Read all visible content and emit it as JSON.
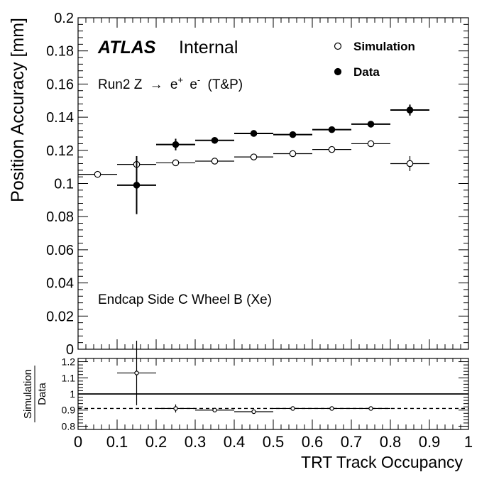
{
  "chart_data": [
    {
      "type": "scatter",
      "panel": "main",
      "ylabel": "Position Accuracy [mm]",
      "ylim": [
        0,
        0.2
      ],
      "xlim": [
        0,
        1
      ],
      "ytick_labels": [
        "0",
        "0.02",
        "0.04",
        "0.06",
        "0.08",
        "0.1",
        "0.12",
        "0.14",
        "0.16",
        "0.18",
        "0.2"
      ],
      "ytick_values": [
        0,
        0.02,
        0.04,
        0.06,
        0.08,
        0.1,
        0.12,
        0.14,
        0.16,
        0.18,
        0.2
      ],
      "annotations": {
        "atlas": "ATLAS",
        "internal": "Internal",
        "process_prefix": "Run2 Z",
        "process_arrow": "→",
        "process_e1": "e",
        "process_e1_sup": "+",
        "process_e2": "e",
        "process_e2_sup": "-",
        "process_suffix": "(T&P)",
        "region": "Endcap Side C Wheel B (Xe)"
      },
      "legend": {
        "placement": "top-right",
        "entries": [
          "Simulation",
          "Data"
        ]
      },
      "series": [
        {
          "name": "Simulation",
          "marker": "open-circle",
          "x": [
            0.05,
            0.15,
            0.25,
            0.35,
            0.45,
            0.55,
            0.65,
            0.75,
            0.85
          ],
          "xerr": [
            0.05,
            0.05,
            0.05,
            0.05,
            0.05,
            0.05,
            0.05,
            0.05,
            0.05
          ],
          "y": [
            0.1055,
            0.1115,
            0.1125,
            0.1135,
            0.116,
            0.118,
            0.1205,
            0.124,
            0.112
          ],
          "yerr": [
            0,
            0.002,
            0,
            0,
            0,
            0,
            0,
            0,
            0.0045
          ]
        },
        {
          "name": "Data",
          "marker": "filled-circle",
          "x": [
            0.15,
            0.25,
            0.35,
            0.45,
            0.55,
            0.65,
            0.75,
            0.85
          ],
          "xerr": [
            0.05,
            0.05,
            0.05,
            0.05,
            0.05,
            0.05,
            0.05,
            0.05
          ],
          "y": [
            0.099,
            0.1235,
            0.126,
            0.1302,
            0.1295,
            0.1325,
            0.1358,
            0.1443
          ],
          "yerr": [
            0.0175,
            0.0035,
            0.0015,
            0.001,
            0.001,
            0.001,
            0.0013,
            0.0033
          ]
        }
      ]
    },
    {
      "type": "scatter",
      "panel": "ratio",
      "ylabel_num": "Simulation",
      "ylabel_den": "Data",
      "xlabel": "TRT Track Occupancy",
      "ylim": [
        0.78,
        1.22
      ],
      "xlim": [
        0,
        1
      ],
      "ytick_labels": [
        "0.8",
        "0.9",
        "1",
        "1.1",
        "1.2"
      ],
      "ytick_values": [
        0.8,
        0.9,
        1.0,
        1.1,
        1.2
      ],
      "xtick_labels": [
        "0",
        "0.1",
        "0.2",
        "0.3",
        "0.4",
        "0.5",
        "0.6",
        "0.7",
        "0.8",
        "0.9",
        "1"
      ],
      "xtick_values": [
        0,
        0.1,
        0.2,
        0.3,
        0.4,
        0.5,
        0.6,
        0.7,
        0.8,
        0.9,
        1.0
      ],
      "reference_lines": [
        {
          "y": 1.0,
          "style": "solid"
        },
        {
          "y": 0.91,
          "style": "dashed"
        }
      ],
      "series": [
        {
          "name": "Simulation/Data",
          "marker": "open-circle",
          "x": [
            0.15,
            0.25,
            0.35,
            0.45,
            0.55,
            0.65,
            0.75
          ],
          "xerr": [
            0.05,
            0.05,
            0.05,
            0.05,
            0.05,
            0.05,
            0.05
          ],
          "y": [
            1.13,
            0.91,
            0.9,
            0.89,
            0.91,
            0.91,
            0.91
          ],
          "yerr": [
            0.2,
            0.025,
            0.01,
            0,
            0,
            0,
            0
          ]
        }
      ]
    }
  ]
}
